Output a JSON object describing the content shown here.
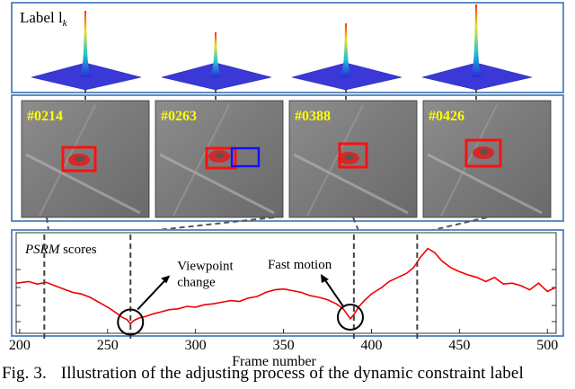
{
  "figure": {
    "top_panel": {
      "label_main": "Label l",
      "label_sub": "k",
      "response_maps_count": 4
    },
    "frames": [
      {
        "id": "#0214",
        "frame": 214
      },
      {
        "id": "#0263",
        "frame": 263
      },
      {
        "id": "#0388",
        "frame": 388
      },
      {
        "id": "#0426",
        "frame": 426
      }
    ],
    "frame_label_color": "#ffff00",
    "box_colors": {
      "tracker": "#ff1010",
      "label": "#1010ff"
    },
    "panel_border_color": "#4f81bd",
    "chart_data": {
      "type": "line",
      "title": "",
      "series_label_italic": "PSRM",
      "series_label_rest": " scores",
      "xlabel": "Frame number",
      "ylabel": "",
      "xlim": [
        198,
        505
      ],
      "xticks": [
        200,
        250,
        300,
        350,
        400,
        450,
        500
      ],
      "ylim": [
        0,
        1
      ],
      "grid": false,
      "color": "#ee0000",
      "series": [
        {
          "x": [
            198,
            205,
            210,
            215,
            220,
            225,
            230,
            235,
            240,
            245,
            250,
            255,
            258,
            261,
            263,
            265,
            268,
            272,
            276,
            280,
            285,
            290,
            295,
            300,
            305,
            310,
            315,
            320,
            325,
            330,
            335,
            340,
            345,
            350,
            355,
            360,
            365,
            370,
            375,
            380,
            384,
            386,
            388,
            390,
            393,
            396,
            398,
            400,
            403,
            406,
            410,
            415,
            420,
            424,
            428,
            432,
            436,
            440,
            445,
            450,
            455,
            460,
            465,
            470,
            475,
            480,
            485,
            490,
            495,
            500,
            505
          ],
          "y": [
            0.53,
            0.55,
            0.52,
            0.54,
            0.5,
            0.46,
            0.42,
            0.4,
            0.36,
            0.3,
            0.24,
            0.17,
            0.12,
            0.09,
            0.04,
            0.08,
            0.11,
            0.13,
            0.16,
            0.18,
            0.21,
            0.22,
            0.25,
            0.24,
            0.27,
            0.28,
            0.3,
            0.32,
            0.31,
            0.35,
            0.37,
            0.42,
            0.45,
            0.46,
            0.44,
            0.42,
            0.38,
            0.36,
            0.33,
            0.28,
            0.22,
            0.16,
            0.1,
            0.15,
            0.25,
            0.32,
            0.36,
            0.4,
            0.44,
            0.48,
            0.55,
            0.6,
            0.65,
            0.72,
            0.85,
            0.95,
            0.9,
            0.8,
            0.72,
            0.67,
            0.63,
            0.6,
            0.55,
            0.6,
            0.52,
            0.53,
            0.5,
            0.45,
            0.53,
            0.43,
            0.48
          ]
        }
      ],
      "annotations": [
        {
          "text_line1": "Viewpoint",
          "text_line2": "change",
          "x": 263
        },
        {
          "text": "Fast motion",
          "x": 388
        }
      ],
      "dashed_markers_x": [
        214,
        263,
        390,
        426
      ]
    }
  },
  "caption": {
    "prefix": "Fig. 3.",
    "text": "Illustration of the adjusting process of the dynamic constraint label"
  }
}
